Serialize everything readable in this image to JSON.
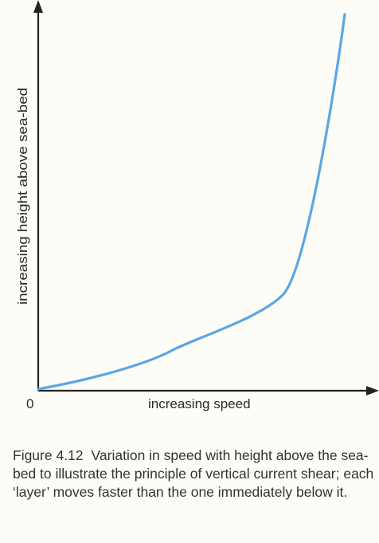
{
  "diagram": {
    "y_axis_label": "increasing height above sea-bed",
    "x_axis_label": "increasing speed",
    "origin_label": "0",
    "curve_color": "#5aa6e6",
    "axis_color": "#222222",
    "curve_shape": "exponential growth: speed increases with height above sea-bed"
  },
  "caption": {
    "figure_number": "Figure 4.12",
    "text": "Variation in speed with height above the sea-bed to illustrate the principle of vertical current shear; each ‘layer’ moves faster than the one immediately below it."
  }
}
